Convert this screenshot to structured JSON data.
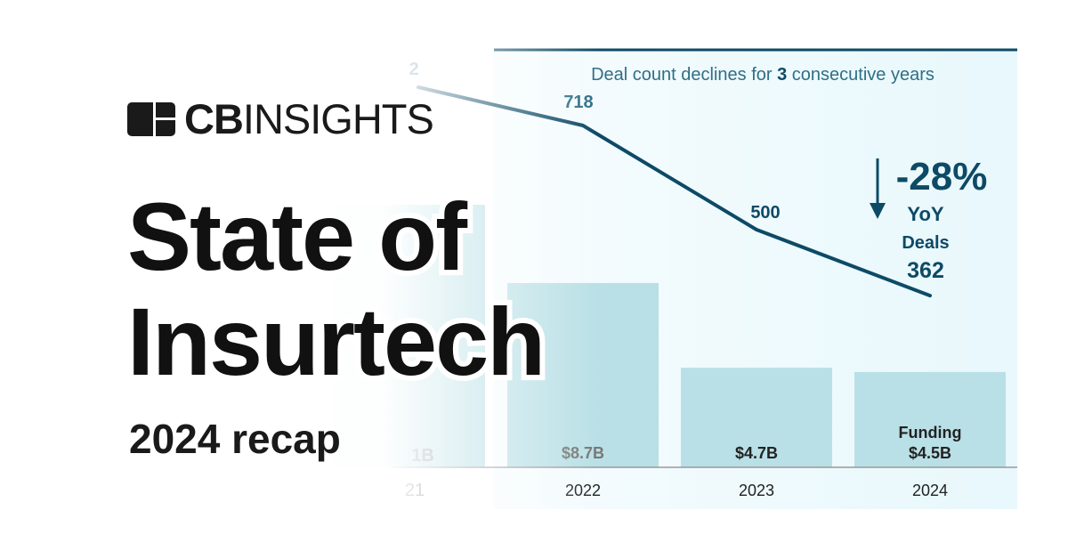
{
  "brand": {
    "logo_bold": "CB",
    "logo_light": "INSIGHTS"
  },
  "title_line1": "State of",
  "title_line2": "Insurtech",
  "subtitle": "2024 recap",
  "colors": {
    "accent": "#0d4a66",
    "bar": "#b9e0e6",
    "panel": "#eaf8fc"
  },
  "chart_data": {
    "type": "bar+line",
    "title": "Deal count declines for 3 consecutive years",
    "title_emphasis": "3",
    "categories": [
      "2022",
      "2023",
      "2024"
    ],
    "series": [
      {
        "name": "Funding",
        "type": "bar",
        "values": [
          8.7,
          4.7,
          4.5
        ],
        "labels": [
          "$8.7B",
          "$4.7B",
          "$4.5B"
        ]
      },
      {
        "name": "Deals",
        "type": "line",
        "values": [
          718,
          500,
          362
        ],
        "labels": [
          "718",
          "500",
          "362"
        ]
      }
    ],
    "partial_left": {
      "category": "21",
      "deal_label": "2",
      "funding_label": "1B"
    },
    "annotation": {
      "change": "-28%",
      "period": "YoY",
      "icon": "arrow-down-icon"
    },
    "grid": false,
    "legend": "none"
  }
}
